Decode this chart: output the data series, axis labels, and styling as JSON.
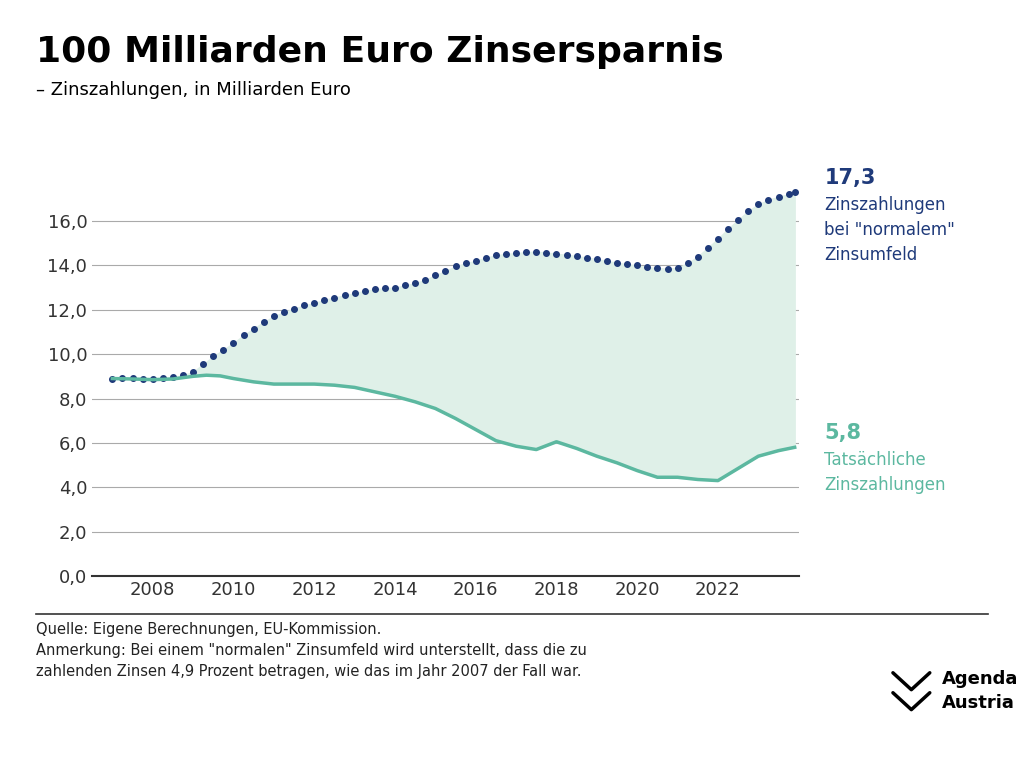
{
  "title": "100 Milliarden Euro Zinsersparnis",
  "subtitle": "– Zinszahlungen, in Milliarden Euro",
  "background_color": "#ffffff",
  "title_color": "#000000",
  "subtitle_color": "#000000",
  "dotted_line_color": "#1f3a7a",
  "solid_line_color": "#5cb8a0",
  "fill_color": "#dff0e8",
  "dotted_label_value": "17,3",
  "dotted_label_lines": "Zinszahlungen\nbei \"normalem\"\nZinsumfeld",
  "solid_label_value": "5,8",
  "solid_label_lines": "Tatsächliche\nZinszahlungen",
  "dotted_label_color": "#1f3a7a",
  "solid_label_color": "#5cb8a0",
  "ylabel_ticks": [
    "0,0",
    "2,0",
    "4,0",
    "6,0",
    "8,0",
    "10,0",
    "12,0",
    "14,0",
    "16,0"
  ],
  "ytick_values": [
    0,
    2,
    4,
    6,
    8,
    10,
    12,
    14,
    16
  ],
  "ylim": [
    0,
    18.0
  ],
  "xlim": [
    2006.5,
    2024.0
  ],
  "xtick_values": [
    2008,
    2010,
    2012,
    2014,
    2016,
    2018,
    2020,
    2022
  ],
  "source_text": "Quelle: Eigene Berechnungen, EU-Kommission.\nAnmerkung: Bei einem \"normalen\" Zinsumfeld wird unterstellt, dass die zu\nzahlenden Zinsen 4,9 Prozent betragen, wie das im Jahr 2007 der Fall war.",
  "dotted_x": [
    2007,
    2007.25,
    2007.5,
    2007.75,
    2008,
    2008.25,
    2008.5,
    2008.75,
    2009,
    2009.25,
    2009.5,
    2009.75,
    2010,
    2010.25,
    2010.5,
    2010.75,
    2011,
    2011.25,
    2011.5,
    2011.75,
    2012,
    2012.25,
    2012.5,
    2012.75,
    2013,
    2013.25,
    2013.5,
    2013.75,
    2014,
    2014.25,
    2014.5,
    2014.75,
    2015,
    2015.25,
    2015.5,
    2015.75,
    2016,
    2016.25,
    2016.5,
    2016.75,
    2017,
    2017.25,
    2017.5,
    2017.75,
    2018,
    2018.25,
    2018.5,
    2018.75,
    2019,
    2019.25,
    2019.5,
    2019.75,
    2020,
    2020.25,
    2020.5,
    2020.75,
    2021,
    2021.25,
    2021.5,
    2021.75,
    2022,
    2022.25,
    2022.5,
    2022.75,
    2023,
    2023.25,
    2023.5,
    2023.75,
    2023.9
  ],
  "dotted_y": [
    8.9,
    8.92,
    8.91,
    8.9,
    8.9,
    8.93,
    8.97,
    9.05,
    9.2,
    9.55,
    9.9,
    10.2,
    10.5,
    10.85,
    11.15,
    11.45,
    11.7,
    11.9,
    12.05,
    12.2,
    12.3,
    12.45,
    12.55,
    12.65,
    12.75,
    12.85,
    12.92,
    12.97,
    13.0,
    13.1,
    13.2,
    13.35,
    13.55,
    13.75,
    13.95,
    14.1,
    14.2,
    14.35,
    14.45,
    14.52,
    14.55,
    14.6,
    14.62,
    14.58,
    14.52,
    14.48,
    14.42,
    14.35,
    14.28,
    14.2,
    14.12,
    14.05,
    14.0,
    13.92,
    13.88,
    13.85,
    13.9,
    14.1,
    14.4,
    14.8,
    15.2,
    15.65,
    16.05,
    16.45,
    16.75,
    16.95,
    17.1,
    17.2,
    17.3
  ],
  "solid_x": [
    2007,
    2007.5,
    2008,
    2008.5,
    2009,
    2009.33,
    2009.67,
    2010,
    2010.5,
    2011,
    2011.5,
    2012,
    2012.5,
    2013,
    2013.5,
    2014,
    2014.5,
    2015,
    2015.5,
    2016,
    2016.5,
    2017,
    2017.5,
    2018,
    2018.5,
    2019,
    2019.5,
    2020,
    2020.5,
    2021,
    2021.5,
    2022,
    2022.5,
    2023,
    2023.5,
    2023.9
  ],
  "solid_y": [
    8.9,
    8.88,
    8.85,
    8.88,
    9.0,
    9.05,
    9.02,
    8.9,
    8.75,
    8.65,
    8.65,
    8.65,
    8.6,
    8.5,
    8.3,
    8.1,
    7.85,
    7.55,
    7.1,
    6.6,
    6.1,
    5.85,
    5.7,
    6.05,
    5.75,
    5.4,
    5.1,
    4.75,
    4.45,
    4.45,
    4.35,
    4.3,
    4.85,
    5.4,
    5.65,
    5.8
  ]
}
